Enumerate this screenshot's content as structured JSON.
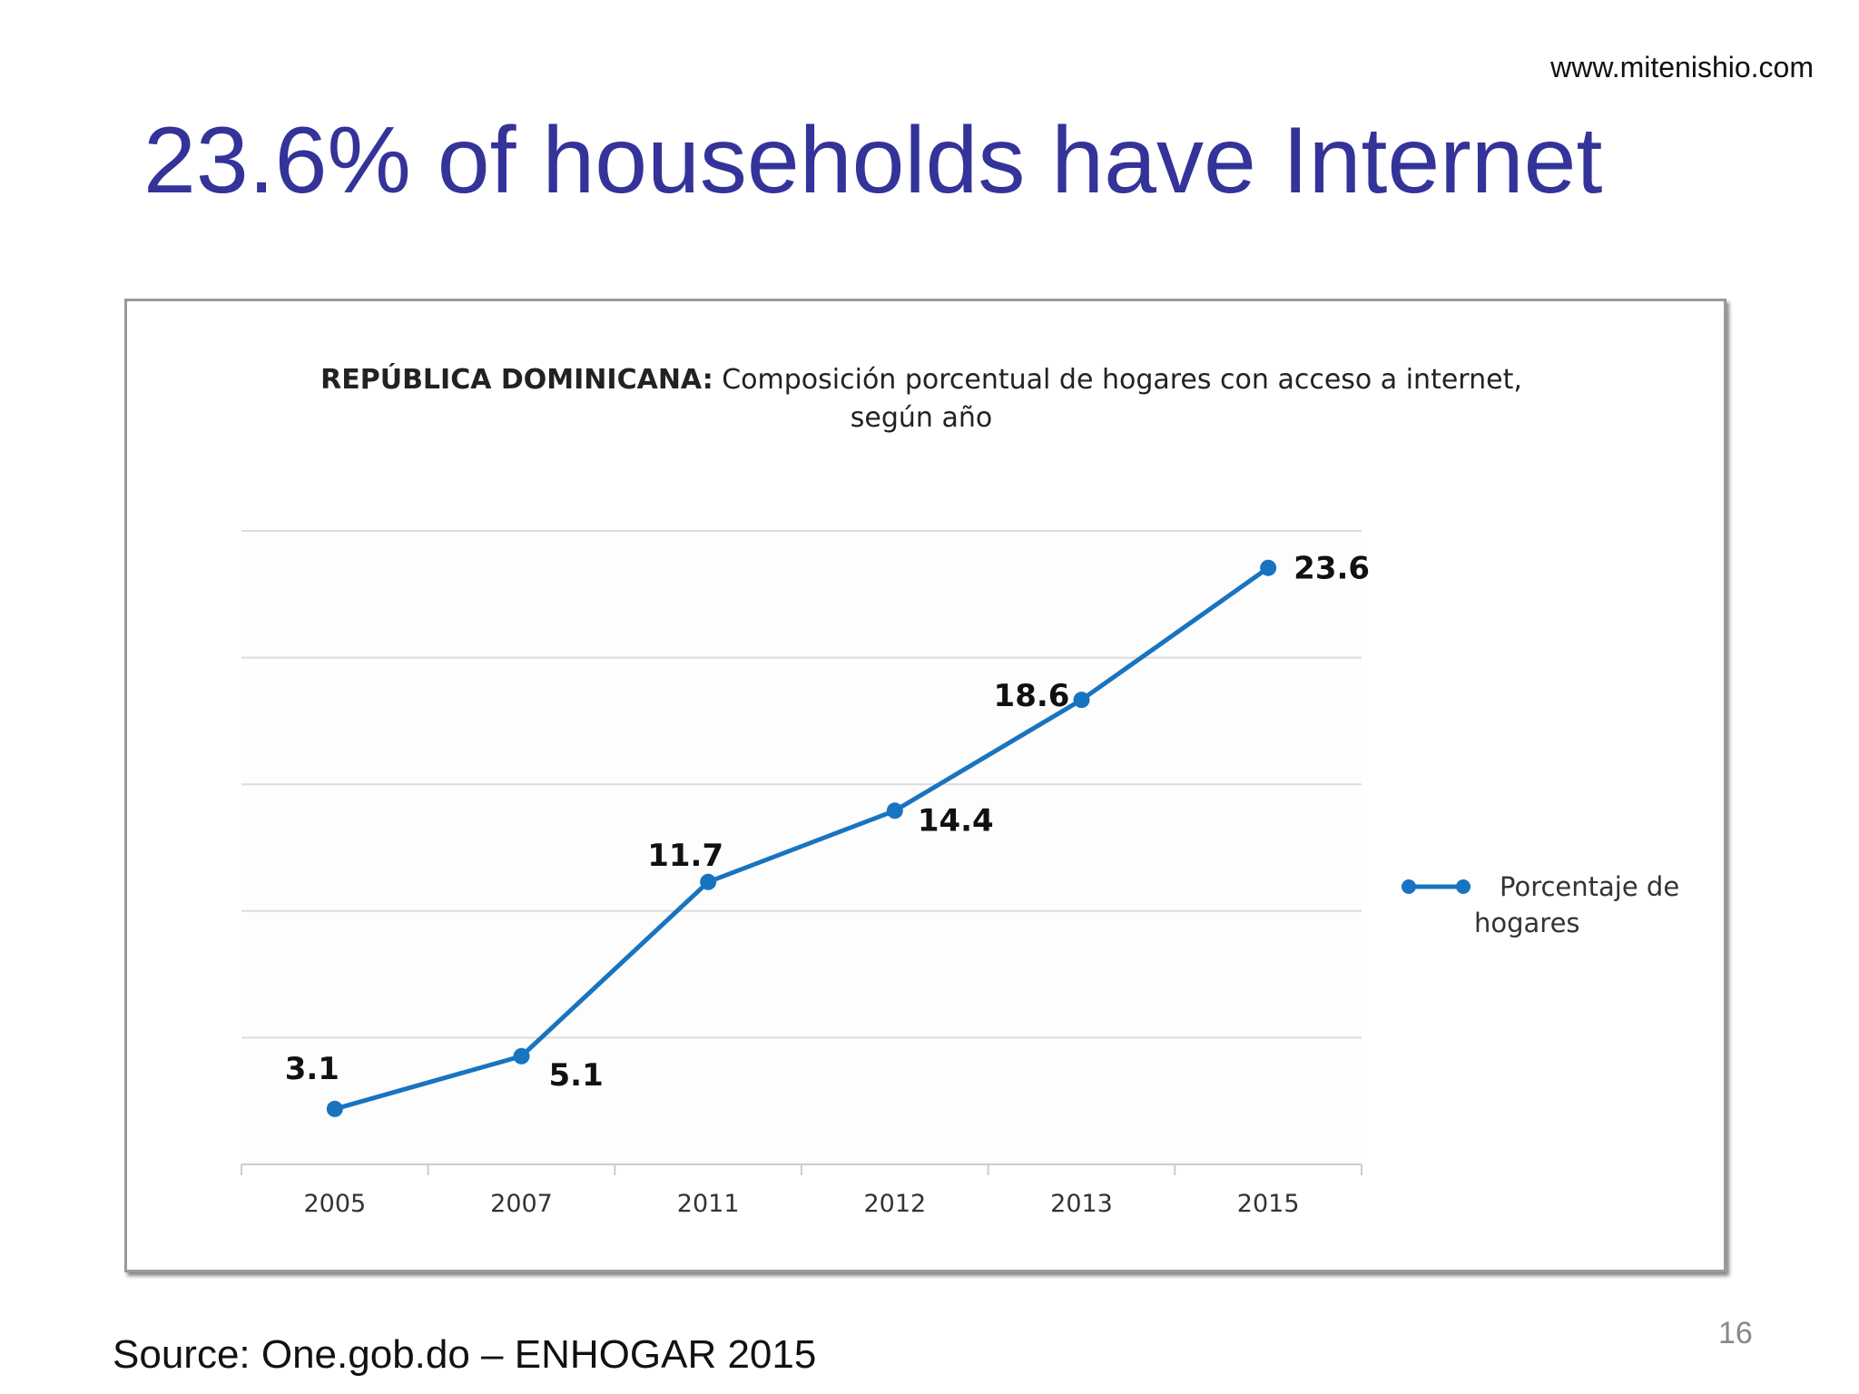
{
  "slide": {
    "website": "www.mitenishio.com",
    "title": "23.6% of households have Internet",
    "source": "Source:  One.gob.do – ENHOGAR 2015",
    "page_number": "16"
  },
  "chart_data": {
    "type": "line",
    "title_bold": "REPÚBLICA DOMINICANA:",
    "title_rest": " Composición porcentual de hogares con acceso a internet,",
    "title_line2": "según año",
    "categories": [
      "2005",
      "2007",
      "2011",
      "2012",
      "2013",
      "2015"
    ],
    "series": [
      {
        "name": "Porcentaje de hogares",
        "values": [
          3.1,
          5.1,
          11.7,
          14.4,
          18.6,
          23.6
        ]
      }
    ],
    "legend_lines": [
      "Porcentaje de",
      "hogares"
    ],
    "ylim": [
      1,
      25
    ],
    "grid": true,
    "legend_position": "right",
    "colors": {
      "line": "#1874c0",
      "grid": "#dcdcdc"
    }
  }
}
